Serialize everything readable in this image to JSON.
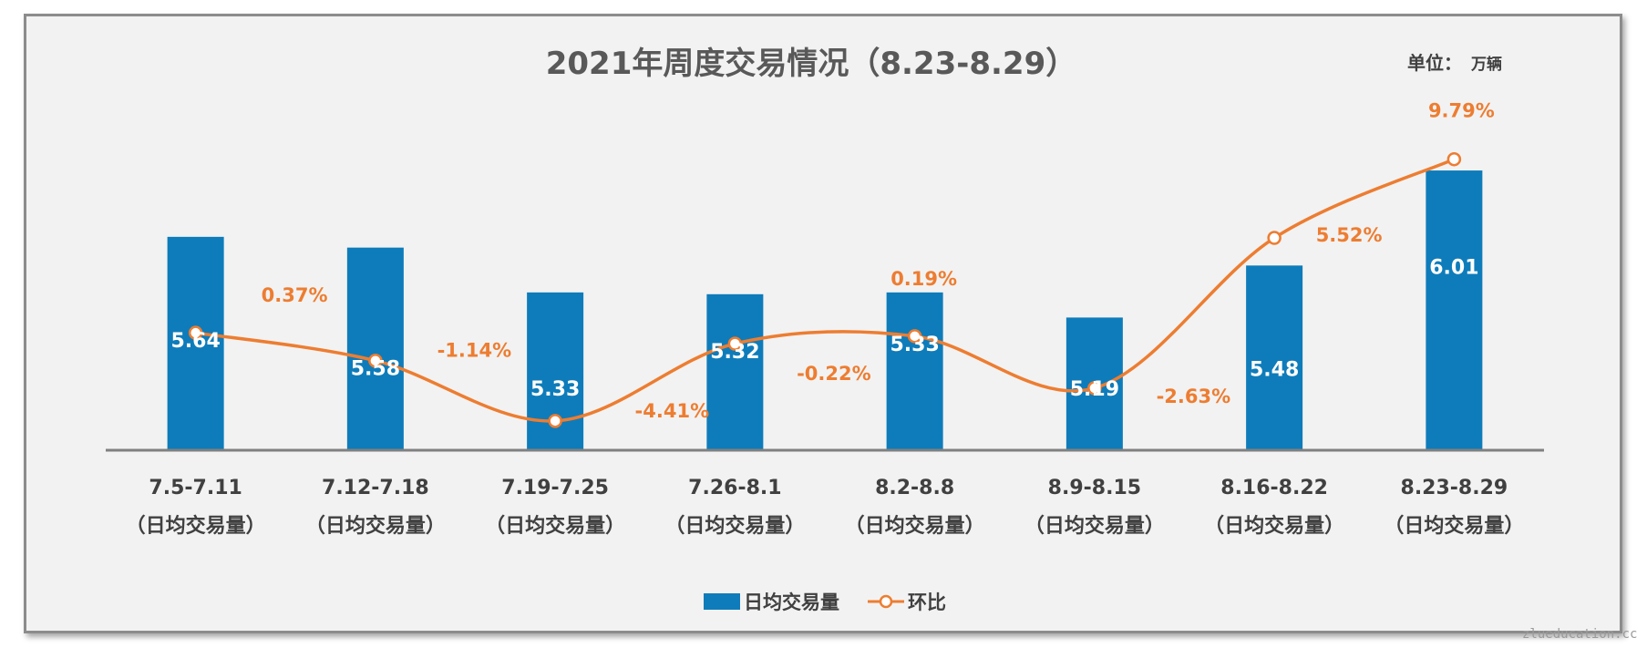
{
  "chart_data": {
    "type": "bar+line",
    "title": "2021年周度交易情况（8.23-8.29）",
    "unit_label": "单位：",
    "unit_value": "万辆",
    "categories": [
      "7.5-7.11",
      "7.12-7.18",
      "7.19-7.25",
      "7.26-8.1",
      "8.2-8.8",
      "8.9-8.15",
      "8.16-8.22",
      "8.23-8.29"
    ],
    "category_sublabel": "（日均交易量）",
    "bar_series": {
      "name": "日均交易量",
      "color": "#0e7cba",
      "values": [
        5.64,
        5.58,
        5.33,
        5.32,
        5.33,
        5.19,
        5.48,
        6.01
      ],
      "labels": [
        "5.64",
        "5.58",
        "5.33",
        "5.32",
        "5.33",
        "5.19",
        "5.48",
        "6.01"
      ]
    },
    "line_series": {
      "name": "环比",
      "color": "#ed7d31",
      "values": [
        0.37,
        -1.14,
        -4.41,
        -0.22,
        0.19,
        -2.63,
        5.52,
        9.79
      ],
      "labels": [
        "0.37%",
        "-1.14%",
        "-4.41%",
        "-0.22%",
        "0.19%",
        "-2.63%",
        "5.52%",
        "9.79%"
      ]
    },
    "bar_axis_range": [
      4.45,
      6.3
    ],
    "line_axis_range": [
      -6.0,
      12.0
    ],
    "legend_position": "bottom",
    "grid": false
  },
  "watermark": "zlueducation.cc"
}
